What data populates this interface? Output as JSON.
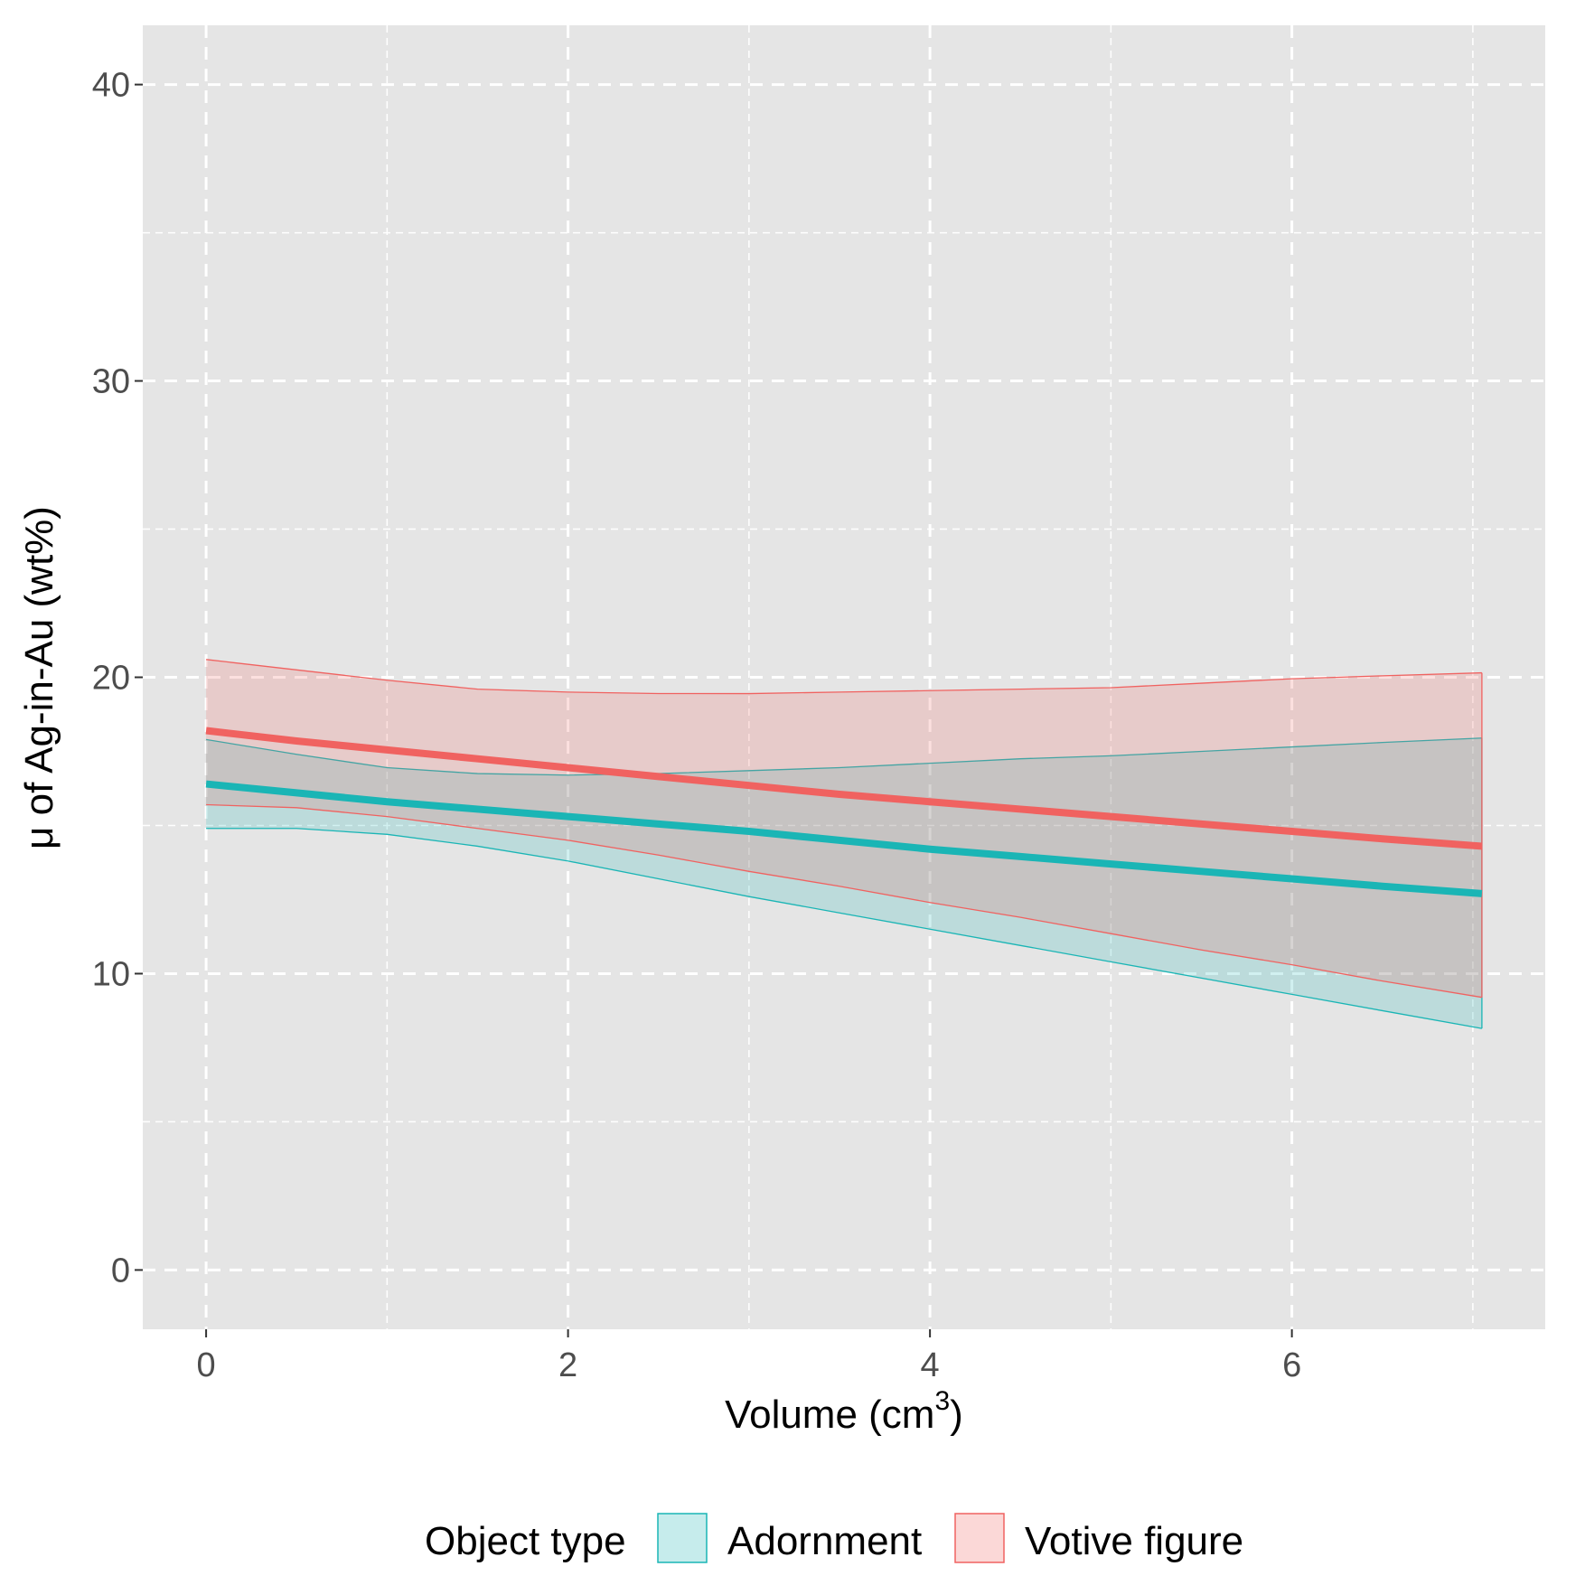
{
  "chart_data": {
    "type": "area",
    "xlabel": "Volume (cm",
    "xlabel_superscript": "3",
    "xlabel_suffix": ")",
    "ylabel": "μ of Ag-in-Au (wt%)",
    "xlim": [
      -0.35,
      7.4
    ],
    "ylim": [
      -2,
      42
    ],
    "x_ticks": [
      0,
      2,
      4,
      6
    ],
    "x_tick_labels": [
      "0",
      "2",
      "4",
      "6"
    ],
    "x_minor_ticks": [
      1,
      3,
      5,
      7
    ],
    "y_ticks": [
      0,
      10,
      20,
      30,
      40
    ],
    "y_tick_labels": [
      "0",
      "10",
      "20",
      "30",
      "40"
    ],
    "y_minor_ticks": [
      5,
      15,
      25,
      35
    ],
    "grid": true,
    "legend_position": "bottom",
    "legend_title": "Object type",
    "series": [
      {
        "name": "Adornment",
        "color": "#1ab5b5",
        "fill": "#1ab5b5",
        "x": [
          0,
          0.5,
          1,
          1.5,
          2,
          2.5,
          3,
          3.5,
          4,
          4.5,
          5,
          5.5,
          6,
          6.5,
          7.05
        ],
        "y": [
          16.4,
          16.1,
          15.8,
          15.55,
          15.3,
          15.05,
          14.8,
          14.5,
          14.2,
          13.95,
          13.7,
          13.45,
          13.2,
          12.95,
          12.7
        ],
        "lower": [
          14.9,
          14.9,
          14.7,
          14.3,
          13.8,
          13.2,
          12.6,
          12.05,
          11.5,
          10.95,
          10.4,
          9.85,
          9.3,
          8.75,
          8.15
        ],
        "upper": [
          17.9,
          17.4,
          16.95,
          16.75,
          16.7,
          16.75,
          16.85,
          16.95,
          17.1,
          17.25,
          17.35,
          17.5,
          17.65,
          17.8,
          17.95
        ]
      },
      {
        "name": "Votive figure",
        "color": "#f06260",
        "fill": "#f06260",
        "x": [
          0,
          0.5,
          1,
          1.5,
          2,
          2.5,
          3,
          3.5,
          4,
          4.5,
          5,
          5.5,
          6,
          6.5,
          7.05
        ],
        "y": [
          18.2,
          17.85,
          17.55,
          17.25,
          16.95,
          16.65,
          16.35,
          16.05,
          15.8,
          15.55,
          15.3,
          15.05,
          14.8,
          14.55,
          14.3
        ],
        "lower": [
          15.7,
          15.6,
          15.3,
          14.9,
          14.5,
          14.0,
          13.45,
          12.95,
          12.4,
          11.9,
          11.35,
          10.8,
          10.3,
          9.75,
          9.2
        ],
        "upper": [
          20.6,
          20.25,
          19.9,
          19.6,
          19.5,
          19.45,
          19.45,
          19.5,
          19.55,
          19.6,
          19.65,
          19.8,
          19.95,
          20.05,
          20.15
        ]
      }
    ]
  }
}
